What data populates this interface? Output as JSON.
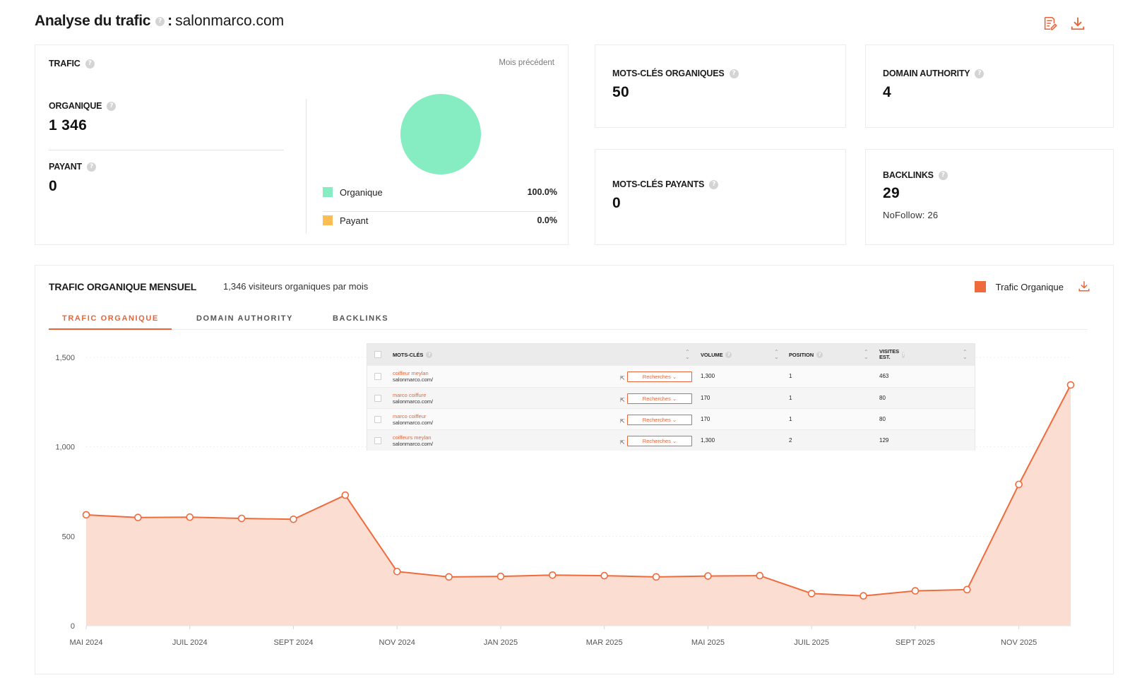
{
  "header": {
    "title": "Analyse du trafic",
    "separator": ":",
    "domain": "salonmarco.com",
    "help": "?"
  },
  "traffic_card": {
    "title": "TRAFIC",
    "period": "Mois précédent",
    "organic_label": "ORGANIQUE",
    "organic_value": "1 346",
    "paid_label": "PAYANT",
    "paid_value": "0",
    "legend": [
      {
        "label": "Organique",
        "percent": "100.0%",
        "color": "#86ecc1"
      },
      {
        "label": "Payant",
        "percent": "0.0%",
        "color": "#fbbd54"
      }
    ]
  },
  "stats": {
    "organic_keywords": {
      "label": "MOTS-CLÉS ORGANIQUES",
      "value": "50"
    },
    "domain_authority": {
      "label": "DOMAIN AUTHORITY",
      "value": "4"
    },
    "paid_keywords": {
      "label": "MOTS-CLÉS PAYANTS",
      "value": "0"
    },
    "backlinks": {
      "label": "BACKLINKS",
      "value": "29",
      "nofollow": "NoFollow: 26"
    }
  },
  "monthly": {
    "title": "TRAFIC ORGANIQUE MENSUEL",
    "subtitle": "1,346 visiteurs organiques par mois",
    "legend_label": "Trafic Organique",
    "accent_color": "#f06b3c",
    "tabs": [
      "TRAFIC ORGANIQUE",
      "DOMAIN AUTHORITY",
      "BACKLINKS"
    ]
  },
  "keyword_table": {
    "headers": {
      "keyword": "MOTS-CLÉS",
      "volume": "VOLUME",
      "position": "POSITION",
      "visits": "VISITES EST."
    },
    "button_label": "Recherches ⌄",
    "rows": [
      {
        "keyword": "coiffeur meylan",
        "url": "salonmarco.com/",
        "volume": "1,300",
        "position": "1",
        "visits": "463"
      },
      {
        "keyword": "marco coiffure",
        "url": "salonmarco.com/",
        "volume": "170",
        "position": "1",
        "visits": "80"
      },
      {
        "keyword": "marco coiffeur",
        "url": "salonmarco.com/",
        "volume": "170",
        "position": "1",
        "visits": "80"
      },
      {
        "keyword": "coiffeurs meylan",
        "url": "salonmarco.com/",
        "volume": "1,300",
        "position": "2",
        "visits": "129"
      }
    ]
  },
  "chart_data": {
    "type": "area",
    "title": "TRAFIC ORGANIQUE MENSUEL",
    "series": [
      {
        "name": "Trafic Organique",
        "color": "#f06b3c"
      }
    ],
    "x": [
      "2024-05",
      "2024-06",
      "2024-07",
      "2024-08",
      "2024-09",
      "2024-10",
      "2024-11",
      "2024-12",
      "2025-01",
      "2025-02",
      "2025-03",
      "2025-04",
      "2025-05",
      "2025-06",
      "2025-07",
      "2025-08",
      "2025-09",
      "2025-10",
      "2025-11",
      "2025-12"
    ],
    "values": [
      620,
      605,
      607,
      600,
      595,
      730,
      303,
      273,
      276,
      283,
      280,
      273,
      278,
      280,
      180,
      167,
      195,
      202,
      790,
      1346
    ],
    "x_tick_labels": [
      {
        "x": "2024-05",
        "label": "MAI 2024"
      },
      {
        "x": "2024-07",
        "label": "JUIL 2024"
      },
      {
        "x": "2024-09",
        "label": "SEPT 2024"
      },
      {
        "x": "2024-11",
        "label": "NOV 2024"
      },
      {
        "x": "2025-01",
        "label": "JAN 2025"
      },
      {
        "x": "2025-03",
        "label": "MAR 2025"
      },
      {
        "x": "2025-05",
        "label": "MAI 2025"
      },
      {
        "x": "2025-07",
        "label": "JUIL 2025"
      },
      {
        "x": "2025-09",
        "label": "SEPT 2025"
      },
      {
        "x": "2025-11",
        "label": "NOV 2025"
      }
    ],
    "y_ticks": [
      "0",
      "500",
      "1,000",
      "1,500"
    ],
    "ylim": [
      0,
      1500
    ],
    "grid": true
  }
}
